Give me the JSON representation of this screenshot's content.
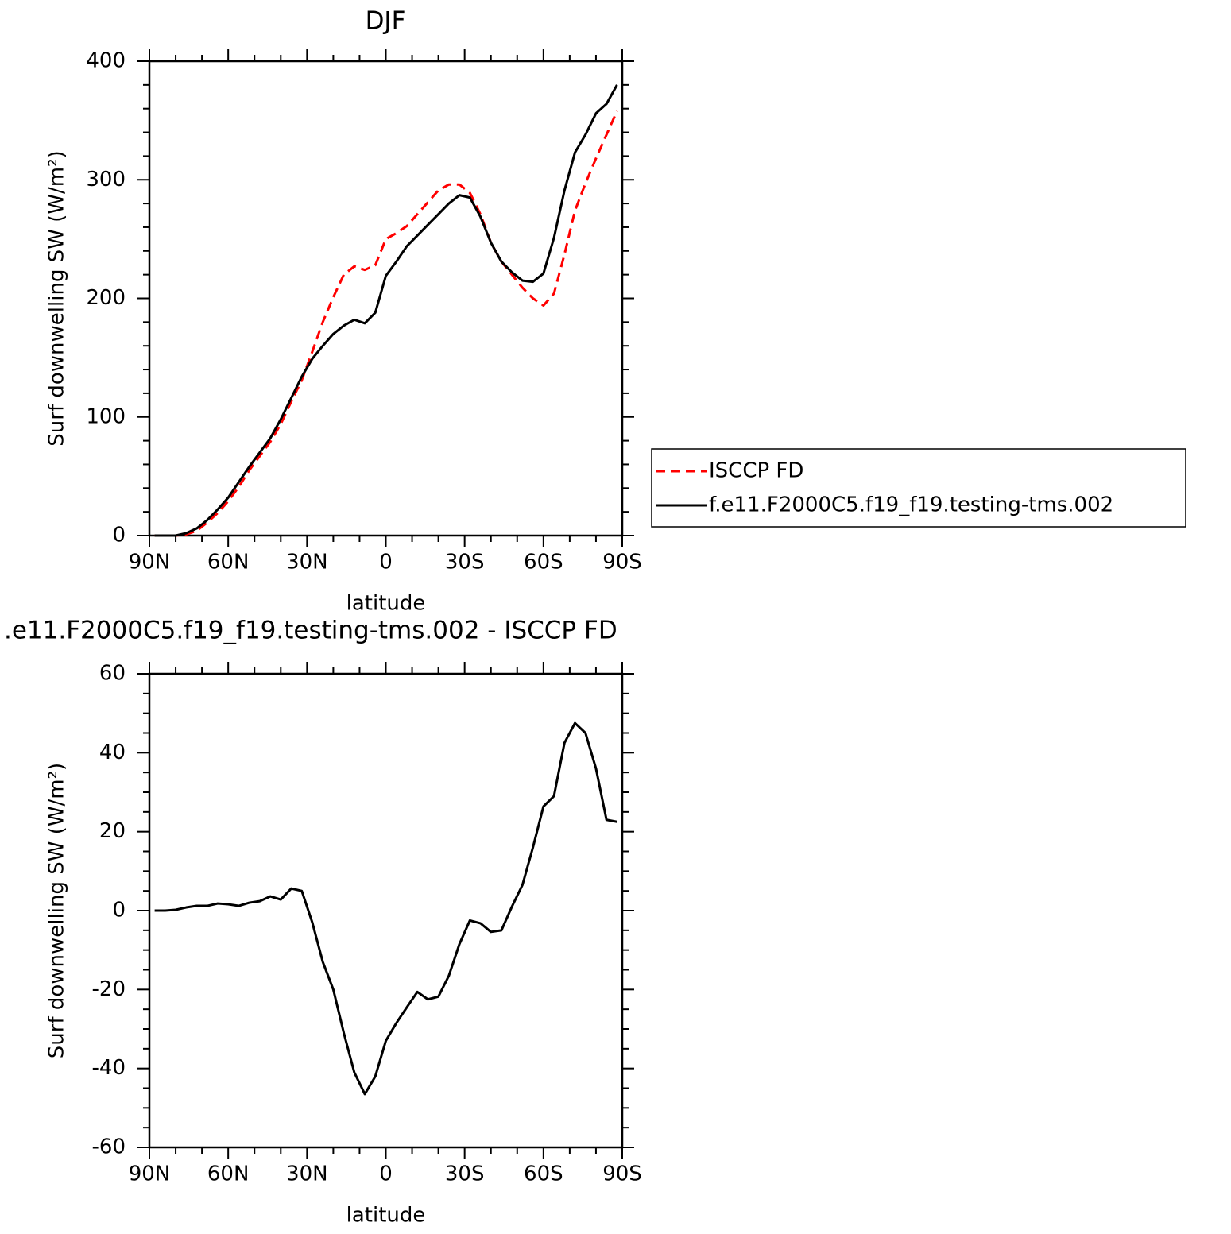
{
  "chart_data": [
    {
      "type": "line",
      "title": "DJF",
      "xlabel": "latitude",
      "ylabel": "Surf downwelling SW (W/m²)",
      "x": [
        88,
        84,
        80,
        76,
        72,
        68,
        64,
        60,
        56,
        52,
        48,
        44,
        40,
        36,
        32,
        28,
        24,
        20,
        16,
        12,
        8,
        4,
        0,
        -4,
        -8,
        -12,
        -16,
        -20,
        -24,
        -28,
        -32,
        -36,
        -40,
        -44,
        -48,
        -52,
        -56,
        -60,
        -64,
        -68,
        -72,
        -76,
        -80,
        -84,
        -88
      ],
      "series": [
        {
          "name": "ISCCP FD",
          "color": "#ff0000",
          "line_style": "dashed",
          "values": [
            0,
            0,
            0,
            1,
            4,
            11,
            19,
            29,
            41,
            55,
            67,
            79,
            94,
            113,
            131,
            155,
            180,
            201,
            220,
            227,
            224,
            228,
            250,
            255,
            261,
            271,
            281,
            291,
            296,
            296,
            289,
            271,
            247,
            231,
            220,
            209,
            200,
            194,
            204,
            237,
            274,
            297,
            318,
            338,
            358
          ]
        },
        {
          "name": "f.e11.F2000C5.f19_f19.testing-tms.002",
          "color": "#000000",
          "line_style": "solid",
          "values": [
            0,
            0,
            0,
            2,
            6,
            13,
            22,
            32,
            45,
            58,
            70,
            82,
            98,
            116,
            134,
            149,
            160,
            170,
            177,
            182,
            179,
            188,
            219,
            231,
            244,
            253,
            262,
            271,
            280,
            287,
            285,
            269,
            247,
            231,
            222,
            215,
            214,
            221,
            251,
            291,
            323,
            338,
            356,
            364,
            380
          ]
        }
      ],
      "xlim": [
        90,
        -90
      ],
      "xticks": [
        {
          "value": 90,
          "label": "90N"
        },
        {
          "value": 60,
          "label": "60N"
        },
        {
          "value": 30,
          "label": "30N"
        },
        0,
        {
          "value": -30,
          "label": "30S"
        },
        {
          "value": -60,
          "label": "60S"
        },
        {
          "value": -90,
          "label": "90S"
        }
      ],
      "xminorticks": [
        80,
        70,
        50,
        40,
        20,
        10,
        -10,
        -20,
        -40,
        -50,
        -70,
        -80
      ],
      "ylim": [
        0,
        400
      ],
      "yticks": [
        0,
        100,
        200,
        300,
        400
      ],
      "yminorticks": [
        20,
        40,
        60,
        80,
        120,
        140,
        160,
        180,
        220,
        240,
        260,
        280,
        320,
        340,
        360,
        380
      ],
      "legend": "right"
    },
    {
      "type": "line",
      "title": ".e11.F2000C5.f19_f19.testing-tms.002 - ISCCP FD",
      "xlabel": "latitude",
      "ylabel": "Surf downwelling SW (W/m²)",
      "x": [
        88,
        84,
        80,
        76,
        72,
        68,
        64,
        60,
        56,
        52,
        48,
        44,
        40,
        36,
        32,
        28,
        24,
        20,
        16,
        12,
        8,
        4,
        0,
        -4,
        -8,
        -12,
        -16,
        -20,
        -24,
        -28,
        -32,
        -36,
        -40,
        -44,
        -48,
        -52,
        -56,
        -60,
        -64,
        -68,
        -72,
        -76,
        -80,
        -84,
        -88
      ],
      "series": [
        {
          "color": "#000000",
          "line_style": "solid",
          "values": [
            0,
            0,
            0.2,
            0.8,
            1.2,
            1.2,
            1.8,
            1.6,
            1.2,
            2,
            2.4,
            3.6,
            2.8,
            5.6,
            5,
            -3,
            -13,
            -20,
            -31,
            -41,
            -46.5,
            -42,
            -33,
            -28.5,
            -24.5,
            -20.6,
            -22.5,
            -21.8,
            -16.5,
            -8.5,
            -2.5,
            -3.2,
            -5.4,
            -5,
            1,
            6.5,
            16,
            26.4,
            29,
            42.5,
            47.5,
            45,
            36,
            23,
            22.5
          ]
        }
      ],
      "xlim": [
        90,
        -90
      ],
      "xticks": [
        {
          "value": 90,
          "label": "90N"
        },
        {
          "value": 60,
          "label": "60N"
        },
        {
          "value": 30,
          "label": "30N"
        },
        0,
        {
          "value": -30,
          "label": "30S"
        },
        {
          "value": -60,
          "label": "60S"
        },
        {
          "value": -90,
          "label": "90S"
        }
      ],
      "xminorticks": [
        80,
        70,
        50,
        40,
        20,
        10,
        -10,
        -20,
        -40,
        -50,
        -70,
        -80
      ],
      "ylim": [
        -60,
        60
      ],
      "yticks": [
        -60,
        -40,
        -20,
        0,
        20,
        40,
        60
      ],
      "yminorticks": [
        -55,
        -50,
        -45,
        -35,
        -30,
        -25,
        -15,
        -10,
        -5,
        5,
        10,
        15,
        25,
        30,
        35,
        45,
        50,
        55
      ]
    }
  ]
}
